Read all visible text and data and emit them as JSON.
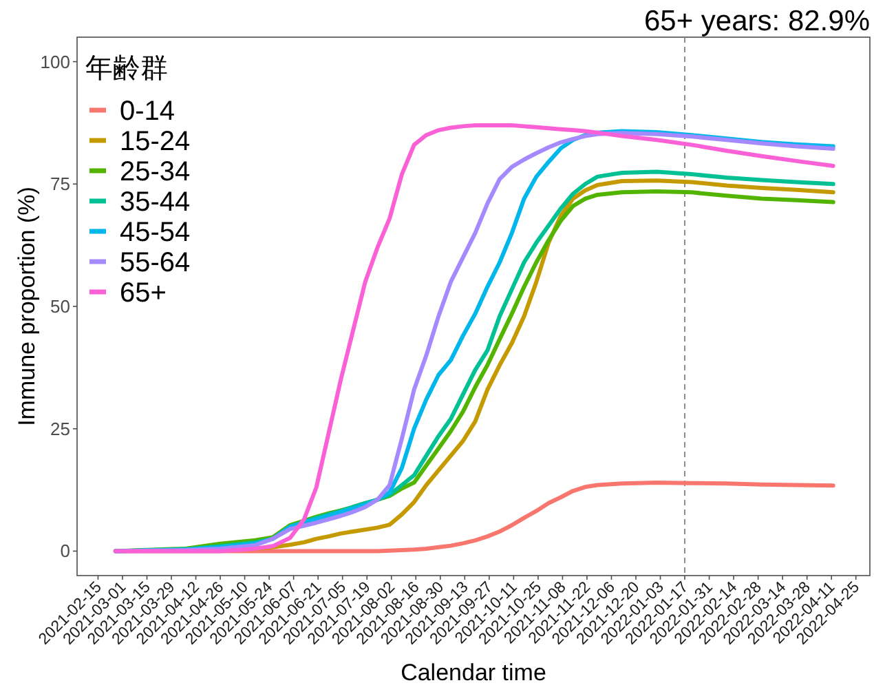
{
  "chart_data": {
    "type": "line",
    "title": "65+ years: 82.9%",
    "xlabel": "Calendar time",
    "ylabel": "Immune proportion (%)",
    "legend_title": "年齢群",
    "legend": "top left",
    "grid": false,
    "line_style": "solid",
    "x": [
      "2021-02-25",
      "2021-04-06",
      "2021-04-26",
      "2021-05-16",
      "2021-05-26",
      "2021-06-05",
      "2021-06-13",
      "2021-06-20",
      "2021-06-27",
      "2021-07-04",
      "2021-07-11",
      "2021-07-18",
      "2021-07-25",
      "2021-08-01",
      "2021-08-08",
      "2021-08-15",
      "2021-08-22",
      "2021-08-29",
      "2021-09-05",
      "2021-09-12",
      "2021-09-19",
      "2021-09-26",
      "2021-10-03",
      "2021-10-10",
      "2021-10-17",
      "2021-10-24",
      "2021-10-31",
      "2021-11-07",
      "2021-11-14",
      "2021-11-21",
      "2021-11-28",
      "2021-12-12",
      "2022-01-01",
      "2022-01-21",
      "2022-02-10",
      "2022-03-02",
      "2022-03-22",
      "2022-04-12"
    ],
    "series": [
      {
        "name": "0-14",
        "color": "#f8766d",
        "values": [
          0,
          0,
          0,
          0,
          0,
          0,
          0,
          0,
          0,
          0,
          0,
          0,
          0,
          0.1,
          0.2,
          0.3,
          0.5,
          0.8,
          1.1,
          1.6,
          2.2,
          3,
          4,
          5.3,
          6.8,
          8.2,
          9.8,
          11,
          12.3,
          13.1,
          13.5,
          13.8,
          14,
          13.9,
          13.8,
          13.6,
          13.5,
          13.4
        ]
      },
      {
        "name": "15-24",
        "color": "#c49a00",
        "values": [
          null,
          null,
          0.2,
          0.5,
          0.8,
          1.3,
          1.8,
          2.5,
          3,
          3.6,
          4,
          4.4,
          4.8,
          5.4,
          7.5,
          10,
          13.5,
          16.5,
          19.5,
          22.5,
          26.5,
          33,
          38,
          42.5,
          48,
          55,
          63,
          68.5,
          72,
          73.7,
          74.8,
          75.6,
          75.7,
          75.4,
          74.7,
          74.2,
          73.8,
          73.3
        ]
      },
      {
        "name": "25-34",
        "color": "#53b400",
        "values": [
          0,
          0.5,
          1.5,
          2.2,
          2.8,
          5.3,
          6.2,
          7,
          7.7,
          8.3,
          9,
          9.8,
          10.5,
          11.3,
          12.8,
          14,
          17.5,
          21,
          24.5,
          28.5,
          33.5,
          38,
          43.3,
          48.5,
          54,
          59,
          63.5,
          67.5,
          70.5,
          72,
          72.8,
          73.3,
          73.5,
          73.3,
          72.6,
          72,
          71.7,
          71.3
        ]
      },
      {
        "name": "35-44",
        "color": "#00c094",
        "values": [
          0,
          0.4,
          1,
          1.8,
          2.5,
          5,
          6,
          6.8,
          7.5,
          8.2,
          9,
          9.8,
          10.5,
          11.5,
          13.5,
          15.5,
          19.5,
          23.5,
          27,
          32,
          37,
          41,
          48,
          53.5,
          59,
          63,
          66.5,
          70,
          73,
          75,
          76.5,
          77.3,
          77.5,
          77,
          76.3,
          75.8,
          75.4,
          75
        ]
      },
      {
        "name": "45-54",
        "color": "#00b6eb",
        "values": [
          0,
          0.3,
          0.8,
          1.5,
          2.5,
          5,
          5.8,
          6.5,
          7.2,
          8,
          8.7,
          9.5,
          10.5,
          12,
          17,
          25,
          31,
          36,
          39,
          44,
          48.5,
          54,
          59,
          65,
          72,
          76.5,
          79.5,
          82.3,
          84,
          85,
          85.5,
          85.8,
          85.6,
          85,
          84.3,
          83.6,
          83.1,
          82.7
        ]
      },
      {
        "name": "55-64",
        "color": "#a58aff",
        "values": [
          0,
          0.2,
          0.5,
          1.2,
          2.5,
          4.5,
          5.2,
          5.8,
          6.5,
          7.2,
          8,
          9,
          10.5,
          13.5,
          23,
          33,
          40,
          48,
          55,
          60,
          65,
          71,
          76,
          78.5,
          80,
          81.3,
          82.5,
          83.5,
          84.2,
          84.8,
          85.2,
          85.4,
          85.2,
          84.7,
          84,
          83.3,
          82.7,
          82.2
        ]
      },
      {
        "name": "65+",
        "color": "#fb61d7",
        "values": [
          0,
          0,
          0,
          0.5,
          1,
          2.7,
          6.5,
          13,
          24,
          35,
          45,
          55,
          62,
          68,
          77,
          83,
          85,
          86,
          86.5,
          86.8,
          87,
          87,
          87,
          87,
          86.8,
          86.6,
          86.4,
          86.2,
          86,
          85.8,
          85.5,
          84.8,
          84,
          83,
          81.8,
          80.7,
          79.7,
          78.7
        ]
      }
    ],
    "xlim": [
      "2021-02-03",
      "2022-05-03"
    ],
    "xticks": [
      "2021-02-15",
      "2021-03-01",
      "2021-03-15",
      "2021-03-29",
      "2021-04-12",
      "2021-04-26",
      "2021-05-10",
      "2021-05-24",
      "2021-06-07",
      "2021-06-21",
      "2021-07-05",
      "2021-07-19",
      "2021-08-02",
      "2021-08-16",
      "2021-08-30",
      "2021-09-13",
      "2021-09-27",
      "2021-10-11",
      "2021-10-25",
      "2021-11-08",
      "2021-11-22",
      "2021-12-06",
      "2021-12-20",
      "2022-01-03",
      "2022-01-17",
      "2022-01-31",
      "2022-02-14",
      "2022-02-28",
      "2022-03-14",
      "2022-03-28",
      "2022-04-11",
      "2022-04-25"
    ],
    "ylim": [
      -5,
      105
    ],
    "yticks": [
      0,
      25,
      50,
      75,
      100
    ],
    "ref_lines": [
      {
        "axis": "x",
        "value": "2022-01-17",
        "color": "#808080",
        "line_style": "dashed"
      }
    ]
  }
}
